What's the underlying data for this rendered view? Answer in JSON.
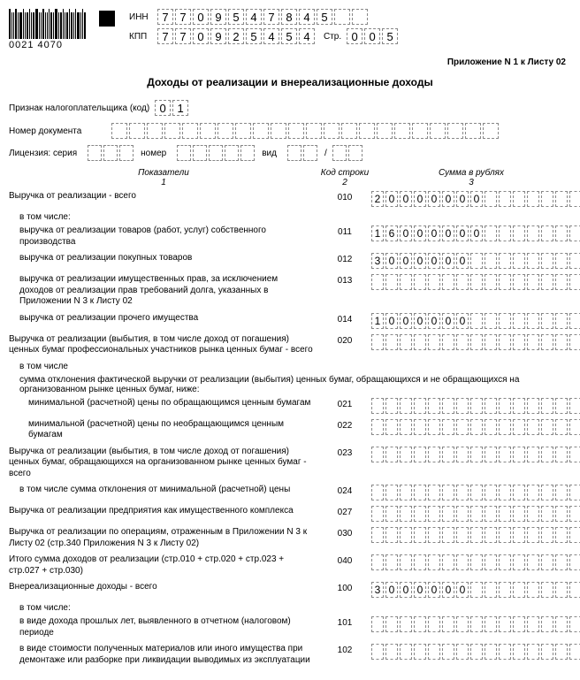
{
  "barcode_number": "0021 4070",
  "inn_label": "ИНН",
  "kpp_label": "КПП",
  "inn": [
    "7",
    "7",
    "0",
    "9",
    "5",
    "4",
    "7",
    "8",
    "4",
    "5",
    "",
    ""
  ],
  "kpp": [
    "7",
    "7",
    "0",
    "9",
    "2",
    "5",
    "4",
    "5",
    "4"
  ],
  "page_label": "Стр.",
  "page": [
    "0",
    "0",
    "5"
  ],
  "annex": "Приложение N 1 к Листу 02",
  "title": "Доходы от реализации и внереализационные доходы",
  "taxpayer_label": "Признак налогоплательщика (код)",
  "taxpayer_code": [
    "0",
    "1"
  ],
  "doc_num_label": "Номер документа",
  "doc_num_cells": 22,
  "lic_label": "Лицензия: серия",
  "lic_series_cells": 3,
  "lic_num_label": "номер",
  "lic_num_cells": 5,
  "lic_kind_label": "вид",
  "lic_kind_cells_a": 2,
  "lic_kind_cells_b": 2,
  "col_headers": {
    "c1": "Показатели",
    "c1n": "1",
    "c2": "Код строки",
    "c2n": "2",
    "c3": "Сумма в рублях",
    "c3n": "3"
  },
  "amount_cells": 15,
  "rows": [
    {
      "desc": "Выручка от реализации - всего",
      "code": "010",
      "value": [
        "2",
        "0",
        "0",
        "0",
        "0",
        "0",
        "0",
        "0"
      ],
      "indent": 0
    },
    {
      "desc": "в том числе:",
      "code": "",
      "value": null,
      "indent": 1,
      "plain": true
    },
    {
      "desc": "выручка от реализации товаров (работ, услуг) собственного производства",
      "code": "011",
      "value": [
        "1",
        "6",
        "0",
        "0",
        "0",
        "0",
        "0",
        "0"
      ],
      "indent": 1
    },
    {
      "desc": "выручка от реализации покупных товаров",
      "code": "012",
      "value": [
        "3",
        "0",
        "0",
        "0",
        "0",
        "0",
        "0"
      ],
      "indent": 1
    },
    {
      "desc": "выручка от реализации имущественных прав, за исключением доходов от реализации прав требований долга, указанных в Приложении N 3 к Листу 02",
      "code": "013",
      "value": [],
      "indent": 1
    },
    {
      "desc": "выручка от реализации прочего имущества",
      "code": "014",
      "value": [
        "1",
        "0",
        "0",
        "0",
        "0",
        "0",
        "0"
      ],
      "indent": 1
    },
    {
      "desc": "Выручка от реализации (выбытия, в том числе доход от погашения) ценных бумаг профессиональных участников рынка ценных бумаг - всего",
      "code": "020",
      "value": [],
      "indent": 0
    },
    {
      "desc": "в том числе",
      "code": "",
      "value": null,
      "indent": 1,
      "plain": true
    },
    {
      "desc": "сумма отклонения фактической выручки от реализации (выбытия) ценных бумаг, обращающихся и не обращающихся на организованном рынке ценных бумаг, ниже:",
      "code": "",
      "value": null,
      "indent": 1,
      "plain": true
    },
    {
      "desc": "минимальной (расчетной) цены по обращающимся ценным бумагам",
      "code": "021",
      "value": [],
      "indent": 2
    },
    {
      "desc": "минимальной (расчетной) цены по необращающимся ценным бумагам",
      "code": "022",
      "value": [],
      "indent": 2
    },
    {
      "desc": "Выручка от реализации (выбытия, в том числе доход от погашения) ценных бумаг, обращающихся на организованном рынке ценных бумаг - всего",
      "code": "023",
      "value": [],
      "indent": 0
    },
    {
      "desc": "в том числе сумма отклонения от минимальной (расчетной) цены",
      "code": "024",
      "value": [],
      "indent": 1
    },
    {
      "desc": "Выручка от реализации предприятия как имущественного комплекса",
      "code": "027",
      "value": [],
      "indent": 0
    },
    {
      "desc": "Выручка от реализации по операциям, отраженным в Приложении N 3 к Листу 02 (стр.340 Приложения N 3 к Листу 02)",
      "code": "030",
      "value": [],
      "indent": 0
    },
    {
      "desc": "Итого сумма доходов от реализации\n(стр.010 + стр.020 + стр.023 + стр.027 + стр.030)",
      "code": "040",
      "value": [],
      "indent": 0
    },
    {
      "desc": "Внереализационные доходы - всего",
      "code": "100",
      "value": [
        "3",
        "0",
        "0",
        "0",
        "0",
        "0",
        "0"
      ],
      "indent": 0
    },
    {
      "desc": "в том числе:",
      "code": "",
      "value": null,
      "indent": 1,
      "plain": true
    },
    {
      "desc": "в виде дохода прошлых лет, выявленного в отчетном (налоговом) периоде",
      "code": "101",
      "value": [],
      "indent": 1
    },
    {
      "desc": "в виде стоимости полученных материалов или иного имущества при демонтаже или разборке при ликвидации выводимых из эксплуатации",
      "code": "102",
      "value": [],
      "indent": 1
    }
  ]
}
